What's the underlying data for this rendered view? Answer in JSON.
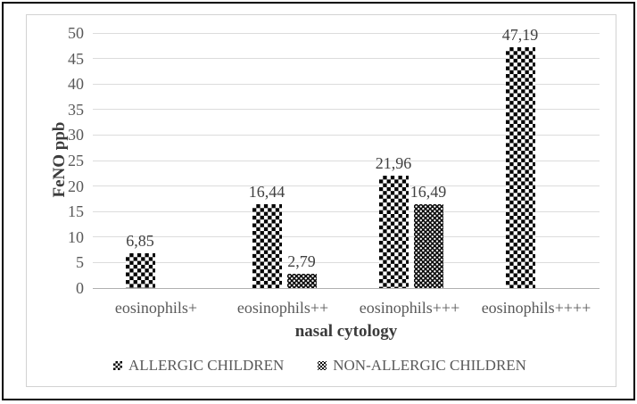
{
  "chart_data": {
    "type": "bar",
    "title": "",
    "xlabel": "nasal cytology",
    "ylabel": "FeNO ppb",
    "ylim": [
      0,
      50
    ],
    "ytick_step": 5,
    "grid": true,
    "legend_position": "bottom",
    "categories": [
      "eosinophils+",
      "eosinophils++",
      "eosinophils+++",
      "eosinophils++++"
    ],
    "series": [
      {
        "name": "ALLERGIC CHILDREN",
        "pattern": "checkerboard",
        "values": [
          6.85,
          16.44,
          21.96,
          47.19
        ],
        "value_labels": [
          "6,85",
          "16,44",
          "21,96",
          "47,19"
        ]
      },
      {
        "name": "NON-ALLERGIC CHILDREN",
        "pattern": "dense-dot",
        "values": [
          null,
          2.79,
          16.49,
          null
        ],
        "value_labels": [
          null,
          "2,79",
          "16,49",
          null
        ]
      }
    ],
    "colors": {
      "bar_foreground": "#000000",
      "gridline": "#dcdcdc",
      "axis_line": "#b0b0b0",
      "tick_text": "#595959",
      "label_text": "#404040",
      "title_text": "#3b3b3b",
      "frame_border": "#000000",
      "chart_border": "#d2d2d2"
    }
  }
}
